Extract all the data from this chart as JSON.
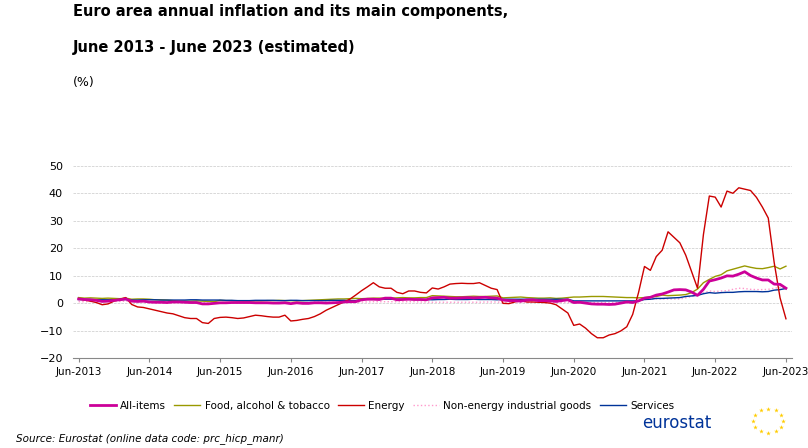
{
  "title_line1": "Euro area annual inflation and its main components,",
  "title_line2": "June 2013 - June 2023 (estimated)",
  "ylabel": "(%)",
  "source_text": "Source: Eurostat (online data code: prc_hicp_manr)",
  "ylim": [
    -20,
    50
  ],
  "yticks": [
    -20,
    -10,
    0,
    10,
    20,
    30,
    40,
    50
  ],
  "x_labels": [
    "Jun-2013",
    "Jun-2014",
    "Jun-2015",
    "Jun-2016",
    "Jun-2017",
    "Jun-2018",
    "Jun-2019",
    "Jun-2020",
    "Jun-2021",
    "Jun-2022",
    "Jun-2023"
  ],
  "colors": {
    "all_items": "#cc0099",
    "food": "#999900",
    "energy": "#cc0000",
    "non_energy": "#ff99cc",
    "services": "#003399"
  },
  "background": "#ffffff",
  "grid_color": "#bbbbbb"
}
